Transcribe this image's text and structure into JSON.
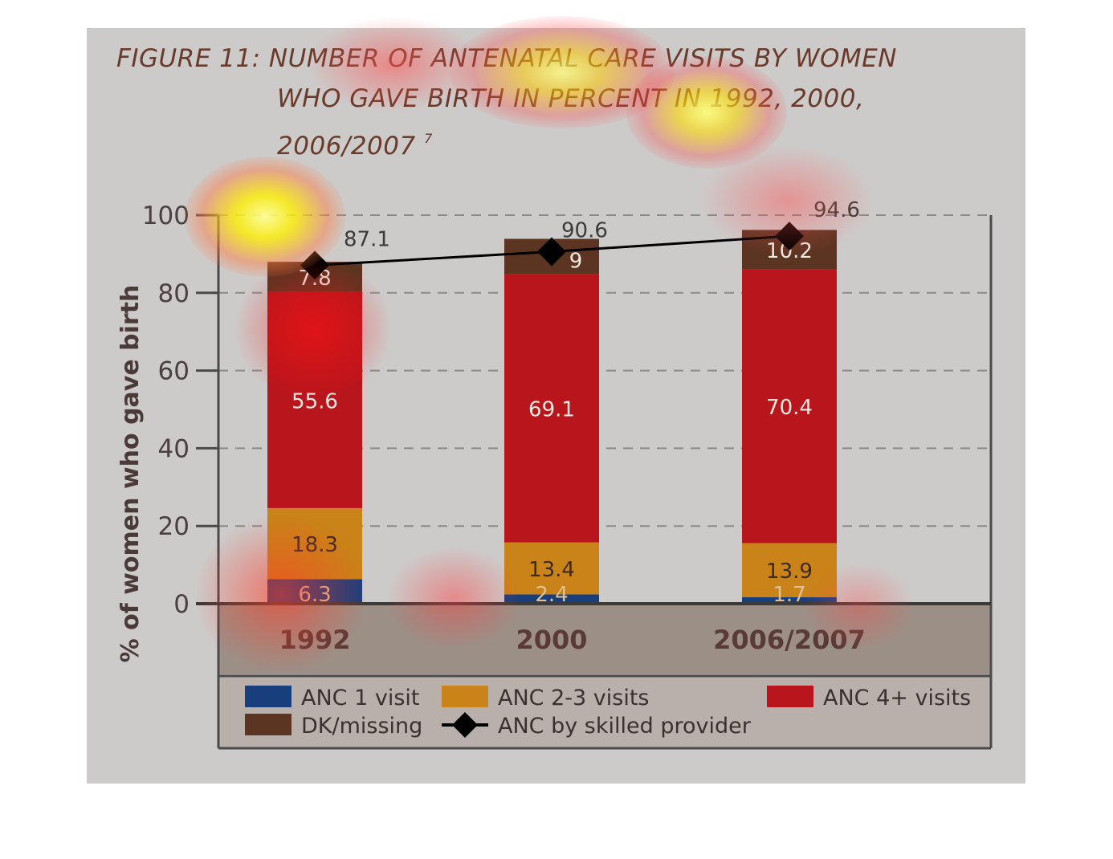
{
  "figure": {
    "title_lines": [
      "FIGURE 11: NUMBER OF ANTENATAL CARE VISITS  BY WOMEN",
      "WHO GAVE BIRTH IN PERCENT IN 1992, 2000,",
      "2006/2007"
    ],
    "title_footnote": "7"
  },
  "chart_data": {
    "type": "bar",
    "stacked": true,
    "categories": [
      "1992",
      "2000",
      "2006/2007"
    ],
    "ylabel": "% of women who gave birth",
    "xlabel": "",
    "ylim": [
      0,
      100
    ],
    "yticks": [
      "0",
      "20",
      "40",
      "60",
      "80",
      "100"
    ],
    "grid": true,
    "legend_position": "bottom",
    "series": [
      {
        "name": "ANC 1 visit",
        "color": "#183e7c",
        "values": [
          6.3,
          2.4,
          1.7
        ],
        "labels": [
          "6.3",
          "2.4",
          "1.7"
        ]
      },
      {
        "name": "ANC 2-3 visits",
        "color": "#c98318",
        "values": [
          18.3,
          13.4,
          13.9
        ],
        "labels": [
          "18.3",
          "13.4",
          "13.9"
        ]
      },
      {
        "name": "ANC 4+ visits",
        "color": "#b8151c",
        "values": [
          55.6,
          69.1,
          70.4
        ],
        "labels": [
          "55.6",
          "69.1",
          "70.4"
        ]
      },
      {
        "name": "DK/missing",
        "color": "#5b3422",
        "values": [
          7.8,
          9,
          10.2
        ],
        "labels": [
          "7.8",
          "9",
          "10.2"
        ]
      }
    ],
    "line_series": {
      "name": "ANC by skilled provider",
      "color": "#000000",
      "values": [
        87.1,
        90.6,
        94.6
      ],
      "labels": [
        "87.1",
        "90.6",
        "94.6"
      ]
    }
  },
  "legend": [
    {
      "label": "ANC 1 visit",
      "swatch": "#183e7c",
      "kind": "box"
    },
    {
      "label": "ANC 2-3 visits",
      "swatch": "#c98318",
      "kind": "box"
    },
    {
      "label": "ANC 4+ visits",
      "swatch": "#b8151c",
      "kind": "box"
    },
    {
      "label": "DK/missing",
      "swatch": "#5b3422",
      "kind": "box"
    },
    {
      "label": "ANC by skilled provider",
      "swatch": "#000000",
      "kind": "line"
    }
  ]
}
